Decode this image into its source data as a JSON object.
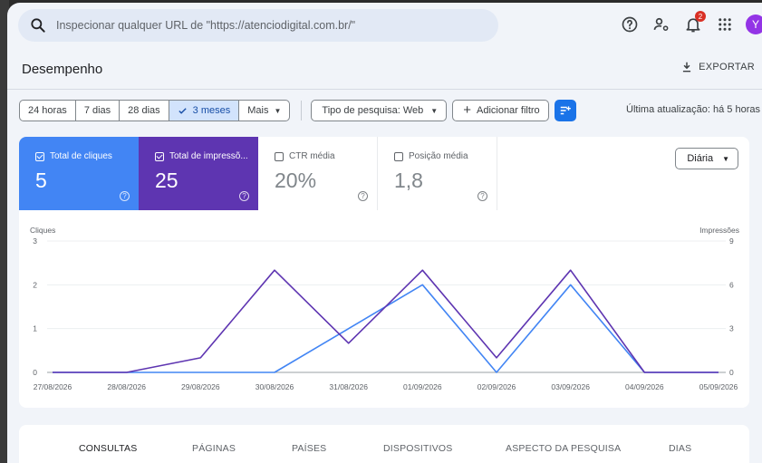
{
  "search": {
    "placeholder": "Inspecionar qualquer URL de \"https://atenciodigital.com.br/\""
  },
  "header": {
    "notification_count": "2",
    "avatar_letter": "Y",
    "icons": [
      "help-icon",
      "manage-users-icon",
      "notifications-icon",
      "apps-grid-icon"
    ]
  },
  "page": {
    "title": "Desempenho",
    "export_label": "EXPORTAR"
  },
  "filters": {
    "date_ranges": [
      {
        "label": "24 horas"
      },
      {
        "label": "7 dias"
      },
      {
        "label": "28 dias"
      },
      {
        "label": "3 meses",
        "selected": true
      },
      {
        "label": "Mais"
      }
    ],
    "search_type": "Tipo de pesquisa: Web",
    "add_filter": "Adicionar filtro",
    "last_update": "Última atualização: há 5 horas"
  },
  "metrics": [
    {
      "label": "Total de cliques",
      "value": "5",
      "checked": true,
      "color": "#4285f4"
    },
    {
      "label": "Total de impressõ...",
      "value": "25",
      "checked": true,
      "color": "#5e35b1"
    },
    {
      "label": "CTR média",
      "value": "20%",
      "checked": false
    },
    {
      "label": "Posição média",
      "value": "1,8",
      "checked": false
    }
  ],
  "granularity": "Diária",
  "chart_data": {
    "type": "line",
    "x": [
      "27/08/2026",
      "28/08/2026",
      "29/08/2026",
      "30/08/2026",
      "31/08/2026",
      "01/09/2026",
      "02/09/2026",
      "03/09/2026",
      "04/09/2026",
      "05/09/2026"
    ],
    "series": [
      {
        "name": "Cliques",
        "axis": "left",
        "color": "#4285f4",
        "values": [
          0,
          0,
          0,
          0,
          1,
          2,
          0,
          2,
          0,
          0
        ]
      },
      {
        "name": "Impressões",
        "axis": "right",
        "color": "#5e35b1",
        "values": [
          0,
          0,
          1,
          7,
          2,
          7,
          1,
          7,
          0,
          0
        ]
      }
    ],
    "y_left": {
      "label": "Cliques",
      "ticks": [
        "0",
        "1",
        "2",
        "3"
      ],
      "lim": [
        0,
        3
      ]
    },
    "y_right": {
      "label": "Impressões",
      "ticks": [
        "0",
        "3",
        "6",
        "9"
      ],
      "lim": [
        0,
        9
      ]
    },
    "grid": true
  },
  "tabs": [
    {
      "label": "CONSULTAS",
      "active": true
    },
    {
      "label": "PÁGINAS"
    },
    {
      "label": "PAÍSES"
    },
    {
      "label": "DISPOSITIVOS"
    },
    {
      "label": "ASPECTO DA PESQUISA"
    },
    {
      "label": "DIAS"
    }
  ]
}
